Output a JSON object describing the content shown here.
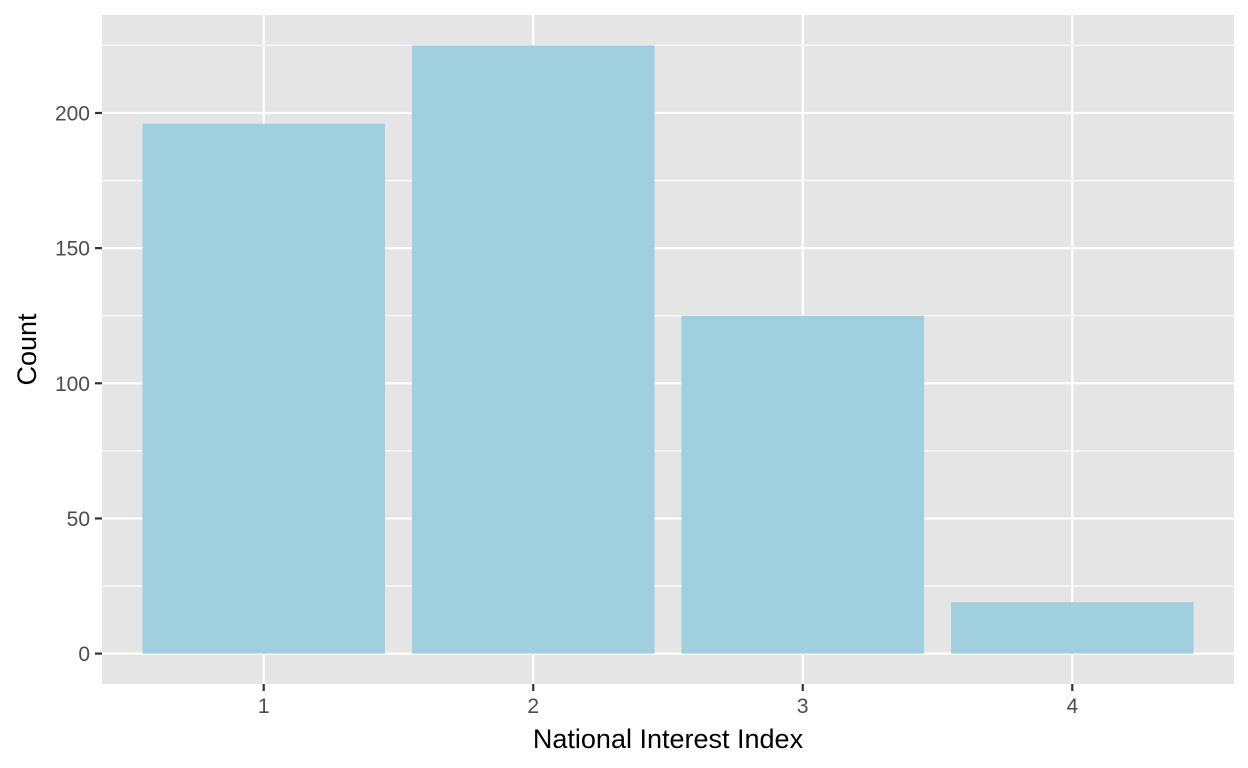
{
  "chart_data": {
    "type": "bar",
    "categories": [
      "1",
      "2",
      "3",
      "4"
    ],
    "values": [
      196,
      225,
      125,
      19
    ],
    "title": "",
    "xlabel": "National Interest Index",
    "ylabel": "Count",
    "ylim": [
      -11.25,
      236.25
    ],
    "yticks": [
      0,
      50,
      100,
      150,
      200
    ],
    "yticks_minor": [
      25,
      75,
      125,
      175,
      225
    ],
    "grid": true,
    "legend": "none",
    "colors": {
      "bar": "#a0cfe0",
      "panel_background": "#e5e5e5",
      "grid_line": "#ffffff",
      "tick_label": "#4d4d4d",
      "axis_title": "#000000"
    }
  }
}
